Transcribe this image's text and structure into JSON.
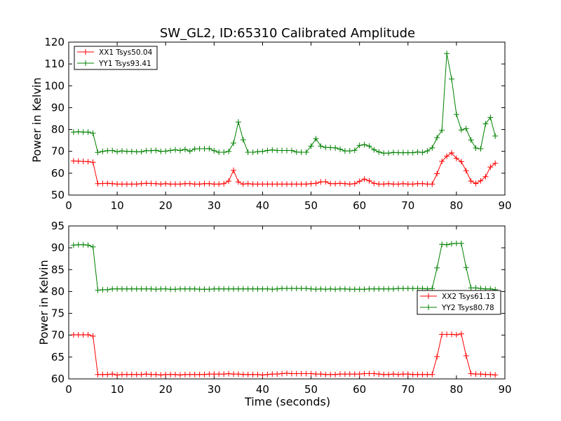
{
  "colors": {
    "xx": "#ff0000",
    "yy": "#008000",
    "frame": "#000000",
    "background": "#ffffff"
  },
  "chart_data": [
    {
      "type": "line",
      "title": "SW_GL2, ID:65310 Calibrated Amplitude",
      "xlabel": "",
      "ylabel": "Power in Kelvin",
      "xlim": [
        0,
        90
      ],
      "ylim": [
        50,
        120
      ],
      "x_ticks": [
        "0",
        "10",
        "20",
        "30",
        "40",
        "50",
        "60",
        "70",
        "80",
        "90"
      ],
      "y_ticks": [
        "50",
        "60",
        "70",
        "80",
        "90",
        "100",
        "110",
        "120"
      ],
      "legend_position": "top-left",
      "x": [
        1,
        2,
        3,
        4,
        5,
        6,
        7,
        8,
        9,
        10,
        11,
        12,
        13,
        14,
        15,
        16,
        17,
        18,
        19,
        20,
        21,
        22,
        23,
        24,
        25,
        26,
        27,
        28,
        29,
        30,
        31,
        32,
        33,
        34,
        35,
        36,
        37,
        38,
        39,
        40,
        41,
        42,
        43,
        44,
        45,
        46,
        47,
        48,
        49,
        50,
        51,
        52,
        53,
        54,
        55,
        56,
        57,
        58,
        59,
        60,
        61,
        62,
        63,
        64,
        65,
        66,
        67,
        68,
        69,
        70,
        71,
        72,
        73,
        74,
        75,
        76,
        77,
        78,
        79,
        80,
        81,
        82,
        83,
        84,
        85,
        86,
        87,
        88
      ],
      "series": [
        {
          "name": "XX1 Tsys50.04",
          "color": "#ff0000",
          "values": [
            65.6,
            65.5,
            65.4,
            65.3,
            65.0,
            55.2,
            55.3,
            55.4,
            55.2,
            55.0,
            55.0,
            55.0,
            55.0,
            55.0,
            55.2,
            55.4,
            55.3,
            55.2,
            55.0,
            55.2,
            55.0,
            55.0,
            55.0,
            55.2,
            55.2,
            55.0,
            55.0,
            55.2,
            55.2,
            55.0,
            55.0,
            55.2,
            56.4,
            61.3,
            56.0,
            55.0,
            55.2,
            55.0,
            55.0,
            55.0,
            55.0,
            55.0,
            55.0,
            55.0,
            55.0,
            55.0,
            55.0,
            55.0,
            55.0,
            55.2,
            55.4,
            56.0,
            56.1,
            55.2,
            55.2,
            55.4,
            55.2,
            55.0,
            55.2,
            56.3,
            57.3,
            56.5,
            55.4,
            55.0,
            55.0,
            55.2,
            55.0,
            55.0,
            55.2,
            55.0,
            55.0,
            55.2,
            55.2,
            55.0,
            55.0,
            59.8,
            65.4,
            67.8,
            69.3,
            66.8,
            65.3,
            61.1,
            56.4,
            55.3,
            56.5,
            58.4,
            62.8,
            64.5
          ]
        },
        {
          "name": "YY1 Tsys93.41",
          "color": "#008000",
          "values": [
            78.8,
            79.0,
            78.8,
            78.8,
            78.3,
            69.5,
            70.0,
            70.3,
            70.4,
            69.8,
            70.2,
            70.0,
            70.0,
            69.8,
            69.8,
            70.3,
            70.3,
            70.5,
            70.0,
            70.1,
            70.4,
            70.7,
            70.4,
            70.9,
            70.1,
            71.1,
            71.2,
            71.2,
            71.3,
            70.3,
            69.6,
            69.6,
            70.0,
            73.8,
            83.4,
            75.3,
            69.6,
            69.6,
            69.8,
            70.0,
            70.4,
            70.6,
            70.4,
            70.4,
            70.4,
            70.4,
            69.7,
            69.6,
            69.6,
            72.4,
            75.8,
            72.4,
            71.8,
            71.7,
            71.6,
            71.0,
            70.2,
            70.2,
            70.5,
            72.7,
            73.1,
            72.4,
            70.7,
            69.7,
            69.2,
            69.2,
            69.5,
            69.4,
            69.4,
            69.4,
            69.4,
            69.7,
            69.5,
            70.2,
            71.6,
            76.3,
            79.6,
            114.8,
            103.1,
            86.9,
            79.8,
            80.4,
            75.2,
            71.5,
            71.2,
            82.6,
            85.5,
            77.0
          ]
        }
      ]
    },
    {
      "type": "line",
      "title": "",
      "xlabel": "Time (seconds)",
      "ylabel": "Power in Kelvin",
      "xlim": [
        0,
        90
      ],
      "ylim": [
        60,
        95
      ],
      "x_ticks": [
        "0",
        "10",
        "20",
        "30",
        "40",
        "50",
        "60",
        "70",
        "80",
        "90"
      ],
      "y_ticks": [
        "60",
        "65",
        "70",
        "75",
        "80",
        "85",
        "90",
        "95"
      ],
      "legend_position": "right",
      "x": [
        1,
        2,
        3,
        4,
        5,
        6,
        7,
        8,
        9,
        10,
        11,
        12,
        13,
        14,
        15,
        16,
        17,
        18,
        19,
        20,
        21,
        22,
        23,
        24,
        25,
        26,
        27,
        28,
        29,
        30,
        31,
        32,
        33,
        34,
        35,
        36,
        37,
        38,
        39,
        40,
        41,
        42,
        43,
        44,
        45,
        46,
        47,
        48,
        49,
        50,
        51,
        52,
        53,
        54,
        55,
        56,
        57,
        58,
        59,
        60,
        61,
        62,
        63,
        64,
        65,
        66,
        67,
        68,
        69,
        70,
        71,
        72,
        73,
        74,
        75,
        76,
        77,
        78,
        79,
        80,
        81,
        82,
        83,
        84,
        85,
        86,
        87,
        88
      ],
      "series": [
        {
          "name": "XX2 Tsys61.13",
          "color": "#ff0000",
          "values": [
            70.1,
            70.1,
            70.1,
            70.1,
            69.8,
            61.0,
            61.0,
            61.0,
            61.1,
            60.9,
            61.0,
            61.0,
            61.0,
            61.0,
            61.0,
            61.1,
            61.0,
            61.0,
            60.9,
            61.0,
            61.0,
            61.0,
            60.9,
            61.0,
            61.0,
            61.0,
            61.0,
            61.0,
            61.1,
            61.1,
            61.1,
            61.1,
            61.2,
            61.1,
            61.1,
            61.0,
            61.0,
            61.0,
            61.0,
            60.9,
            61.0,
            61.1,
            61.1,
            61.2,
            61.3,
            61.2,
            61.2,
            61.2,
            61.2,
            61.2,
            61.1,
            61.1,
            61.0,
            61.0,
            61.0,
            61.1,
            61.1,
            61.1,
            61.1,
            61.1,
            61.2,
            61.2,
            61.2,
            61.1,
            61.0,
            61.0,
            61.1,
            61.0,
            61.1,
            61.1,
            61.0,
            61.0,
            61.0,
            61.0,
            61.0,
            65.1,
            70.2,
            70.2,
            70.2,
            70.1,
            70.3,
            65.3,
            61.2,
            61.1,
            61.1,
            61.0,
            61.0,
            60.9
          ]
        },
        {
          "name": "YY2 Tsys80.78",
          "color": "#008000",
          "values": [
            90.6,
            90.7,
            90.7,
            90.6,
            90.2,
            80.3,
            80.4,
            80.4,
            80.6,
            80.6,
            80.6,
            80.6,
            80.6,
            80.6,
            80.6,
            80.6,
            80.6,
            80.5,
            80.6,
            80.6,
            80.5,
            80.5,
            80.6,
            80.6,
            80.6,
            80.6,
            80.5,
            80.5,
            80.5,
            80.6,
            80.6,
            80.6,
            80.6,
            80.6,
            80.6,
            80.6,
            80.6,
            80.6,
            80.6,
            80.6,
            80.6,
            80.5,
            80.6,
            80.7,
            80.7,
            80.7,
            80.7,
            80.7,
            80.7,
            80.6,
            80.5,
            80.6,
            80.5,
            80.6,
            80.5,
            80.6,
            80.6,
            80.5,
            80.5,
            80.5,
            80.5,
            80.6,
            80.6,
            80.6,
            80.6,
            80.6,
            80.6,
            80.7,
            80.7,
            80.7,
            80.7,
            80.7,
            80.7,
            80.6,
            80.7,
            85.4,
            90.8,
            90.7,
            90.9,
            91.0,
            91.0,
            85.5,
            80.8,
            80.8,
            80.7,
            80.6,
            80.6,
            80.4
          ]
        }
      ]
    }
  ]
}
